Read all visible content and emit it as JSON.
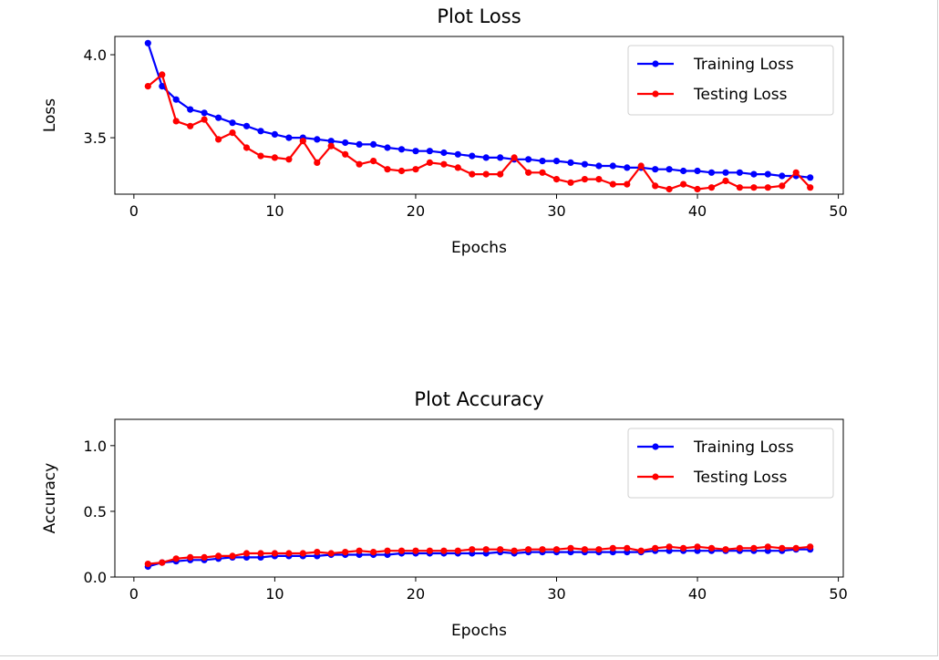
{
  "chart_data": [
    {
      "type": "line",
      "title": "Plot Loss",
      "xlabel": "Epochs",
      "ylabel": "Loss",
      "xlim": [
        -1.35,
        50.35
      ],
      "ylim": [
        3.16,
        4.11
      ],
      "xticks": [
        0,
        10,
        20,
        30,
        40,
        50
      ],
      "yticks": [
        3.5,
        4.0
      ],
      "xtick_labels": [
        "0",
        "10",
        "20",
        "30",
        "40",
        "50"
      ],
      "ytick_labels": [
        "3.5",
        "4.0"
      ],
      "grid": false,
      "legend_position": "top-right",
      "x": [
        1,
        2,
        3,
        4,
        5,
        6,
        7,
        8,
        9,
        10,
        11,
        12,
        13,
        14,
        15,
        16,
        17,
        18,
        19,
        20,
        21,
        22,
        23,
        24,
        25,
        26,
        27,
        28,
        29,
        30,
        31,
        32,
        33,
        34,
        35,
        36,
        37,
        38,
        39,
        40,
        41,
        42,
        43,
        44,
        45,
        46,
        47,
        48
      ],
      "series": [
        {
          "name": "Training Loss",
          "color": "#0000ff",
          "values": [
            4.07,
            3.81,
            3.73,
            3.67,
            3.65,
            3.62,
            3.59,
            3.57,
            3.54,
            3.52,
            3.5,
            3.5,
            3.49,
            3.48,
            3.47,
            3.46,
            3.46,
            3.44,
            3.43,
            3.42,
            3.42,
            3.41,
            3.4,
            3.39,
            3.38,
            3.38,
            3.37,
            3.37,
            3.36,
            3.36,
            3.35,
            3.34,
            3.33,
            3.33,
            3.32,
            3.32,
            3.31,
            3.31,
            3.3,
            3.3,
            3.29,
            3.29,
            3.29,
            3.28,
            3.28,
            3.27,
            3.27,
            3.26
          ]
        },
        {
          "name": "Testing Loss",
          "color": "#ff0000",
          "values": [
            3.81,
            3.88,
            3.6,
            3.57,
            3.61,
            3.49,
            3.53,
            3.44,
            3.39,
            3.38,
            3.37,
            3.48,
            3.35,
            3.45,
            3.4,
            3.34,
            3.36,
            3.31,
            3.3,
            3.31,
            3.35,
            3.34,
            3.32,
            3.28,
            3.28,
            3.28,
            3.38,
            3.29,
            3.29,
            3.25,
            3.23,
            3.25,
            3.25,
            3.22,
            3.22,
            3.33,
            3.21,
            3.19,
            3.22,
            3.19,
            3.2,
            3.24,
            3.2,
            3.2,
            3.2,
            3.21,
            3.29,
            3.2
          ]
        }
      ]
    },
    {
      "type": "line",
      "title": "Plot Accuracy",
      "xlabel": "Epochs",
      "ylabel": "Accuracy",
      "xlim": [
        -1.35,
        50.35
      ],
      "ylim": [
        0.0,
        1.2
      ],
      "xticks": [
        0,
        10,
        20,
        30,
        40,
        50
      ],
      "yticks": [
        0.0,
        0.5,
        1.0
      ],
      "xtick_labels": [
        "0",
        "10",
        "20",
        "30",
        "40",
        "50"
      ],
      "ytick_labels": [
        "0.0",
        "0.5",
        "1.0"
      ],
      "grid": false,
      "legend_position": "top-right",
      "x": [
        1,
        2,
        3,
        4,
        5,
        6,
        7,
        8,
        9,
        10,
        11,
        12,
        13,
        14,
        15,
        16,
        17,
        18,
        19,
        20,
        21,
        22,
        23,
        24,
        25,
        26,
        27,
        28,
        29,
        30,
        31,
        32,
        33,
        34,
        35,
        36,
        37,
        38,
        39,
        40,
        41,
        42,
        43,
        44,
        45,
        46,
        47,
        48
      ],
      "series": [
        {
          "name": "Training Loss",
          "color": "#0000ff",
          "values": [
            0.08,
            0.11,
            0.12,
            0.13,
            0.13,
            0.14,
            0.15,
            0.15,
            0.15,
            0.16,
            0.16,
            0.16,
            0.16,
            0.17,
            0.17,
            0.17,
            0.17,
            0.17,
            0.18,
            0.18,
            0.18,
            0.18,
            0.18,
            0.18,
            0.18,
            0.19,
            0.18,
            0.19,
            0.19,
            0.19,
            0.19,
            0.19,
            0.19,
            0.19,
            0.19,
            0.19,
            0.2,
            0.2,
            0.2,
            0.2,
            0.2,
            0.2,
            0.2,
            0.2,
            0.2,
            0.2,
            0.21,
            0.21
          ]
        },
        {
          "name": "Testing Loss",
          "color": "#ff0000",
          "values": [
            0.1,
            0.11,
            0.14,
            0.15,
            0.15,
            0.16,
            0.16,
            0.18,
            0.18,
            0.18,
            0.18,
            0.18,
            0.19,
            0.18,
            0.19,
            0.2,
            0.19,
            0.2,
            0.2,
            0.2,
            0.2,
            0.2,
            0.2,
            0.21,
            0.21,
            0.21,
            0.2,
            0.21,
            0.21,
            0.21,
            0.22,
            0.21,
            0.21,
            0.22,
            0.22,
            0.2,
            0.22,
            0.23,
            0.22,
            0.23,
            0.22,
            0.21,
            0.22,
            0.22,
            0.23,
            0.22,
            0.22,
            0.23
          ]
        }
      ]
    }
  ]
}
